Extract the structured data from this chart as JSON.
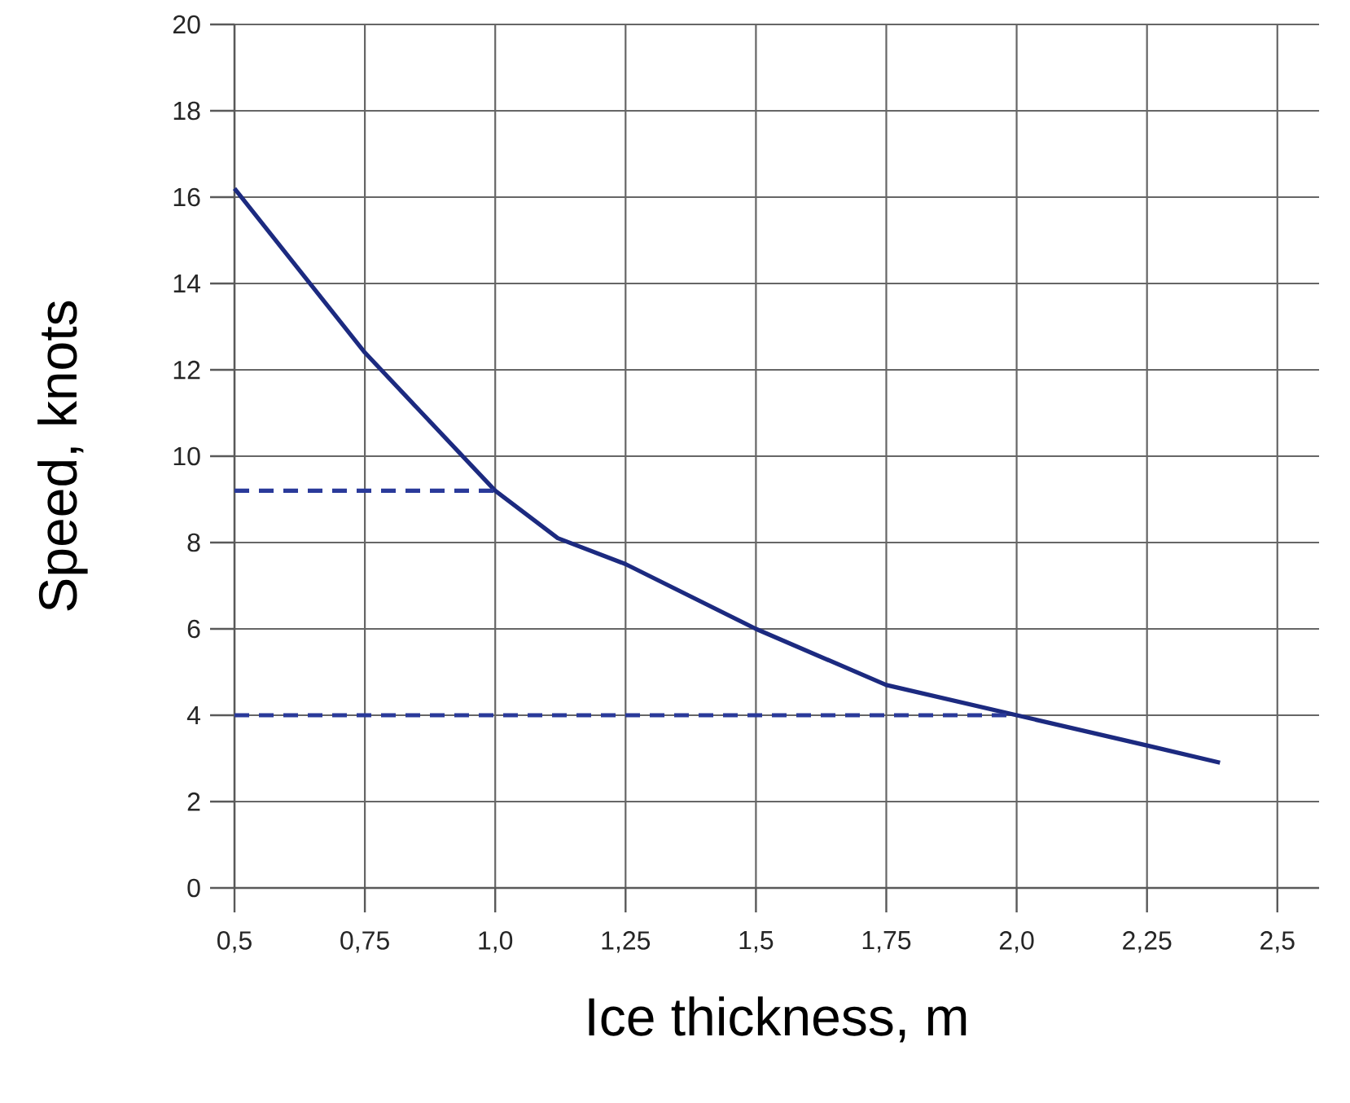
{
  "chart_data": {
    "type": "line",
    "xlabel": "Ice thickness, m",
    "ylabel": "Speed, knots",
    "xlim": [
      0.5,
      2.58
    ],
    "ylim": [
      0,
      20
    ],
    "xticks": [
      {
        "value": 0.5,
        "label": "0,5"
      },
      {
        "value": 0.75,
        "label": "0,75"
      },
      {
        "value": 1.0,
        "label": "1,0"
      },
      {
        "value": 1.25,
        "label": "1,25"
      },
      {
        "value": 1.5,
        "label": "1,5"
      },
      {
        "value": 1.75,
        "label": "1,75"
      },
      {
        "value": 2.0,
        "label": "2,0"
      },
      {
        "value": 2.25,
        "label": "2,25"
      },
      {
        "value": 2.5,
        "label": "2,5"
      }
    ],
    "yticks": [
      0,
      2,
      4,
      6,
      8,
      10,
      12,
      14,
      16,
      18,
      20
    ],
    "grid": true,
    "marker": "none",
    "series": [
      {
        "color": "#1c2a80",
        "line_style": "solid",
        "x": [
          0.5,
          0.75,
          1.0,
          1.12,
          1.25,
          1.5,
          1.75,
          2.0,
          2.25,
          2.39
        ],
        "values": [
          16.2,
          12.4,
          9.2,
          8.1,
          7.5,
          6.0,
          4.7,
          4.0,
          3.3,
          2.9
        ]
      },
      {
        "color": "#2a3a9a",
        "line_style": "dashed",
        "x": [
          0.5,
          1.0
        ],
        "values": [
          9.2,
          9.2
        ]
      },
      {
        "color": "#2a3a9a",
        "line_style": "dashed",
        "x": [
          0.5,
          2.0
        ],
        "values": [
          4.0,
          4.0
        ]
      }
    ]
  }
}
